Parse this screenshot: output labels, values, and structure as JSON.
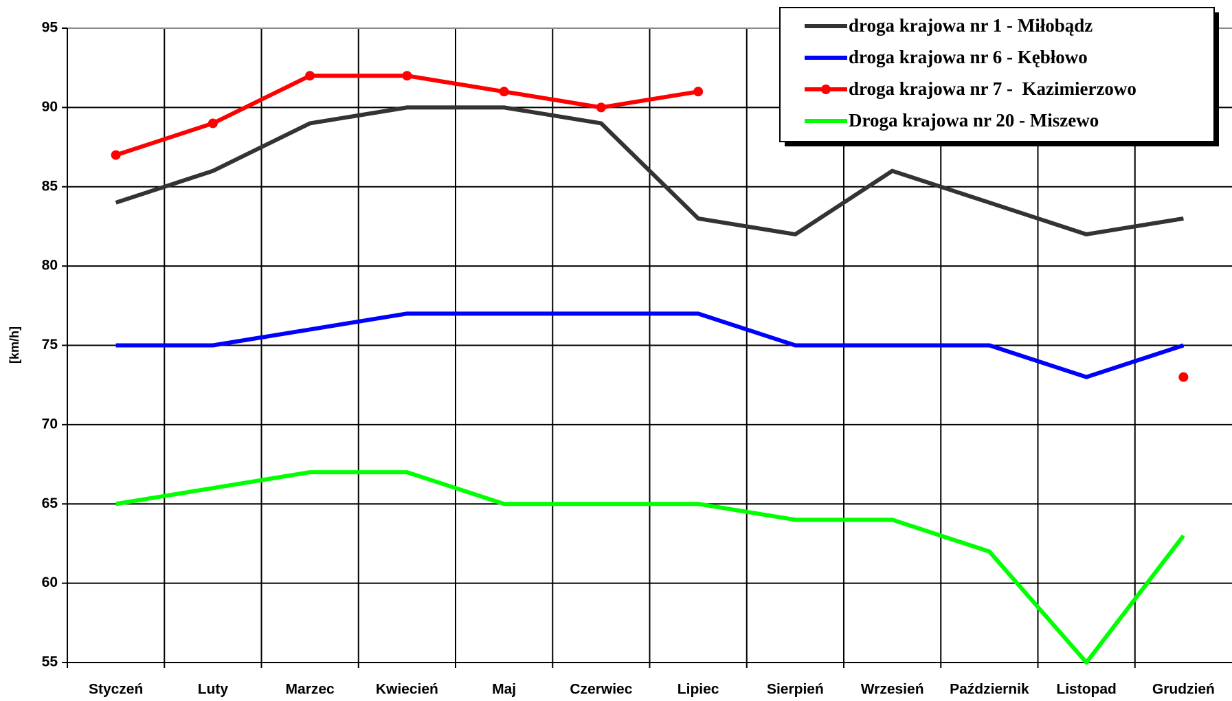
{
  "chart_data": {
    "type": "line",
    "y_label": "[km/h]",
    "categories": [
      "Styczeń",
      "Luty",
      "Marzec",
      "Kwiecień",
      "Maj",
      "Czerwiec",
      "Lipiec",
      "Sierpień",
      "Wrzesień",
      "Październik",
      "Listopad",
      "Grudzień"
    ],
    "series": [
      {
        "name": "droga krajowa nr 1 - Miłobądz",
        "color": "#333333",
        "markers": false,
        "values": [
          84,
          86,
          89,
          90,
          90,
          89,
          83,
          82,
          86,
          84,
          82,
          83
        ]
      },
      {
        "name": "droga krajowa nr 6 - Kębłowo",
        "color": "#0000ff",
        "markers": false,
        "values": [
          75,
          75,
          76,
          77,
          77,
          77,
          77,
          75,
          75,
          75,
          73,
          75
        ]
      },
      {
        "name": "droga krajowa nr 7 -  Kazimierzowo",
        "color": "#ff0000",
        "markers": true,
        "values": [
          87,
          89,
          92,
          92,
          91,
          90,
          91,
          null,
          null,
          null,
          null,
          73
        ]
      },
      {
        "name": "Droga krajowa nr 20 - Miszewo",
        "color": "#00ff00",
        "markers": false,
        "values": [
          65,
          66,
          67,
          67,
          65,
          65,
          65,
          64,
          64,
          62,
          55,
          63
        ]
      }
    ],
    "ylim": [
      55,
      95
    ],
    "yticks": [
      55,
      60,
      65,
      70,
      75,
      80,
      85,
      90,
      95
    ],
    "grid": true,
    "legend": "top-right"
  }
}
